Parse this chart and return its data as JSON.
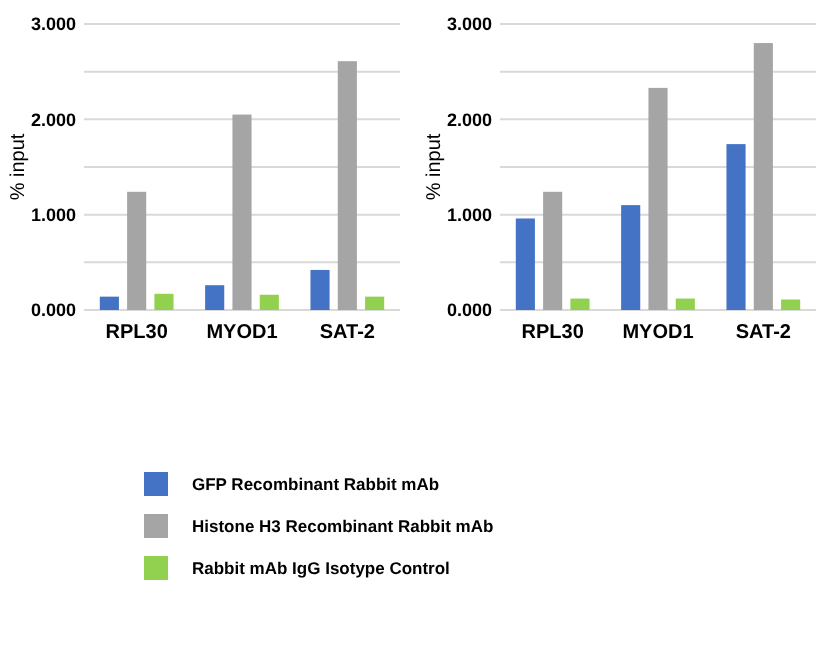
{
  "chart_data": [
    {
      "type": "bar",
      "ylabel": "% input",
      "categories": [
        "RPL30",
        "MYOD1",
        "SAT-2"
      ],
      "ylim": [
        0,
        3
      ],
      "yticks": [
        {
          "value": 0,
          "label": "0.000"
        },
        {
          "value": 0.5,
          "label": null
        },
        {
          "value": 1,
          "label": "1.000"
        },
        {
          "value": 1.5,
          "label": null
        },
        {
          "value": 2,
          "label": "2.000"
        },
        {
          "value": 2.5,
          "label": null
        },
        {
          "value": 3,
          "label": "3.000"
        }
      ],
      "grid": "y",
      "legend": "bottom",
      "series": [
        {
          "name": "GFP Recombinant Rabbit mAb",
          "color": "#4472c4",
          "values": [
            0.14,
            0.26,
            0.42
          ]
        },
        {
          "name": "Histone H3 Recombinant Rabbit mAb",
          "color": "#a5a5a5",
          "values": [
            1.24,
            2.05,
            2.61
          ]
        },
        {
          "name": "Rabbit mAb IgG Isotype Control",
          "color": "#92d050",
          "values": [
            0.17,
            0.16,
            0.14
          ]
        }
      ]
    },
    {
      "type": "bar",
      "ylabel": "% input",
      "categories": [
        "RPL30",
        "MYOD1",
        "SAT-2"
      ],
      "ylim": [
        0,
        3
      ],
      "yticks": [
        {
          "value": 0,
          "label": "0.000"
        },
        {
          "value": 0.5,
          "label": null
        },
        {
          "value": 1,
          "label": "1.000"
        },
        {
          "value": 1.5,
          "label": null
        },
        {
          "value": 2,
          "label": "2.000"
        },
        {
          "value": 2.5,
          "label": null
        },
        {
          "value": 3,
          "label": "3.000"
        }
      ],
      "grid": "y",
      "series": [
        {
          "color": "#4472c4",
          "values": [
            0.96,
            1.1,
            1.74
          ]
        },
        {
          "color": "#a5a5a5",
          "values": [
            1.24,
            2.33,
            2.8
          ]
        },
        {
          "color": "#92d050",
          "values": [
            0.12,
            0.12,
            0.11
          ]
        }
      ]
    }
  ]
}
